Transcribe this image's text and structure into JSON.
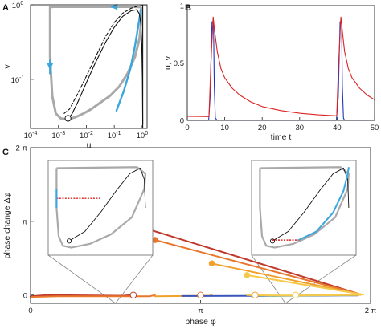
{
  "chart_data": [
    {
      "panel": "A",
      "type": "line",
      "xlabel": "u",
      "ylabel": "v",
      "xscale": "log",
      "yscale": "log",
      "xlim": [
        0.0001,
        1.5
      ],
      "ylim": [
        0.022,
        1.0
      ],
      "xticks": [
        {
          "v": 0.0001,
          "base": "10",
          "exp": "-4"
        },
        {
          "v": 0.001,
          "base": "10",
          "exp": "-3"
        },
        {
          "v": 0.01,
          "base": "10",
          "exp": "-2"
        },
        {
          "v": 0.1,
          "base": "10",
          "exp": "-1"
        },
        {
          "v": 1,
          "base": "10",
          "exp": "0"
        }
      ],
      "yticks": [
        {
          "v": 0.1,
          "base": "10",
          "exp": "-1"
        },
        {
          "v": 1,
          "base": "10",
          "exp": "0"
        }
      ],
      "series": [
        {
          "style": "limit-cycle-gray",
          "color": "#a9a9a9",
          "points": [
            [
              0.0005,
              0.93
            ],
            [
              0.0007,
              0.94
            ],
            [
              0.003,
              0.94
            ],
            [
              0.02,
              0.94
            ],
            [
              0.1,
              0.94
            ],
            [
              0.5,
              0.94
            ],
            [
              0.85,
              0.93
            ],
            [
              0.95,
              0.9
            ],
            [
              0.98,
              0.8
            ],
            [
              0.95,
              0.65
            ],
            [
              0.8,
              0.35
            ],
            [
              0.55,
              0.2
            ],
            [
              0.3,
              0.12
            ],
            [
              0.15,
              0.08
            ],
            [
              0.07,
              0.06
            ],
            [
              0.03,
              0.048
            ],
            [
              0.015,
              0.04
            ],
            [
              0.008,
              0.035
            ],
            [
              0.004,
              0.031
            ],
            [
              0.002,
              0.029
            ],
            [
              0.0012,
              0.03
            ],
            [
              0.0008,
              0.035
            ],
            [
              0.0006,
              0.06
            ],
            [
              0.0005,
              0.2
            ],
            [
              0.0005,
              0.6
            ],
            [
              0.0005,
              0.93
            ]
          ]
        },
        {
          "style": "limit-cycle-blue",
          "color": "#3aa6dd",
          "points": [
            [
              0.12,
              0.038
            ],
            [
              0.22,
              0.07
            ],
            [
              0.38,
              0.14
            ],
            [
              0.55,
              0.28
            ],
            [
              0.7,
              0.48
            ],
            [
              0.8,
              0.65
            ],
            [
              0.86,
              0.78
            ],
            [
              0.88,
              0.86
            ]
          ]
        },
        {
          "style": "limit-cycle-blue",
          "color": "#3aa6dd",
          "points": [
            [
              0.0005,
              0.18
            ],
            [
              0.0005,
              0.12
            ]
          ]
        },
        {
          "style": "nullcline-solid",
          "color": "#111111",
          "points": [
            [
              0.0022,
              0.03
            ],
            [
              0.003,
              0.034
            ],
            [
              0.005,
              0.05
            ],
            [
              0.01,
              0.09
            ],
            [
              0.02,
              0.16
            ],
            [
              0.05,
              0.32
            ],
            [
              0.1,
              0.5
            ],
            [
              0.2,
              0.7
            ],
            [
              0.4,
              0.83
            ],
            [
              0.65,
              0.86
            ],
            [
              0.8,
              0.75
            ],
            [
              0.9,
              0.55
            ],
            [
              0.97,
              0.3
            ],
            [
              1.02,
              0.1
            ],
            [
              1.05,
              0.025
            ]
          ]
        },
        {
          "style": "nullcline-dashed",
          "color": "#111111",
          "points": [
            [
              0.0016,
              0.035
            ],
            [
              0.0025,
              0.04
            ],
            [
              0.005,
              0.065
            ],
            [
              0.01,
              0.11
            ],
            [
              0.02,
              0.19
            ],
            [
              0.05,
              0.38
            ],
            [
              0.1,
              0.58
            ],
            [
              0.2,
              0.77
            ],
            [
              0.4,
              0.9
            ],
            [
              0.7,
              0.96
            ],
            [
              1.3,
              0.98
            ]
          ]
        },
        {
          "style": "vertical-line",
          "color": "#111111",
          "points": [
            [
              1.05,
              0.022
            ],
            [
              1.05,
              1.0
            ]
          ]
        }
      ],
      "markers": [
        {
          "x": 0.0022,
          "y": 0.03,
          "shape": "open-circle"
        }
      ],
      "arrows": [
        {
          "x": 0.1,
          "y": 0.94,
          "dir": "left",
          "color": "#3aa6dd"
        },
        {
          "x": 0.0005,
          "y": 0.15,
          "dir": "down",
          "color": "#3aa6dd"
        }
      ]
    },
    {
      "panel": "B",
      "type": "line",
      "xlabel": "time t",
      "ylabel": "u, v",
      "xlim": [
        0,
        50
      ],
      "ylim": [
        0,
        1.0
      ],
      "xticks": [
        0,
        10,
        20,
        30,
        40,
        50
      ],
      "yticks": [
        0,
        0.5,
        1
      ],
      "ytick_labels": [
        "0",
        "0.5",
        "1"
      ],
      "series": [
        {
          "name": "",
          "color": "#2233bb",
          "points": [
            [
              0,
              0.0
            ],
            [
              5.7,
              0.0
            ],
            [
              6.1,
              0.2
            ],
            [
              6.4,
              0.6
            ],
            [
              6.6,
              0.86
            ],
            [
              7.0,
              0.86
            ],
            [
              7.2,
              0.3
            ],
            [
              7.5,
              0.02
            ],
            [
              8,
              0.0
            ],
            [
              39.8,
              0.0
            ],
            [
              40.3,
              0.2
            ],
            [
              40.6,
              0.6
            ],
            [
              40.8,
              0.86
            ],
            [
              41.2,
              0.86
            ],
            [
              41.4,
              0.3
            ],
            [
              41.7,
              0.02
            ],
            [
              42,
              0.0
            ],
            [
              50,
              0.0
            ]
          ]
        },
        {
          "name": "",
          "color": "#dd2222",
          "points": [
            [
              0,
              0.035
            ],
            [
              5.8,
              0.033
            ],
            [
              6.3,
              0.5
            ],
            [
              6.9,
              0.9
            ],
            [
              7.3,
              0.78
            ],
            [
              8,
              0.6
            ],
            [
              9,
              0.45
            ],
            [
              10,
              0.37
            ],
            [
              12,
              0.28
            ],
            [
              14,
              0.22
            ],
            [
              17,
              0.16
            ],
            [
              20,
              0.12
            ],
            [
              25,
              0.085
            ],
            [
              30,
              0.062
            ],
            [
              35,
              0.048
            ],
            [
              39.9,
              0.04
            ],
            [
              40.4,
              0.5
            ],
            [
              41,
              0.9
            ],
            [
              41.4,
              0.78
            ],
            [
              42,
              0.6
            ],
            [
              43,
              0.45
            ],
            [
              44,
              0.37
            ],
            [
              46,
              0.28
            ],
            [
              48,
              0.22
            ],
            [
              50,
              0.18
            ]
          ]
        }
      ]
    },
    {
      "panel": "C",
      "type": "line",
      "xlabel": "phase φ",
      "ylabel": "phase change Δφ",
      "xlim": [
        0,
        6.2832
      ],
      "ylim": [
        -0.35,
        6.2832
      ],
      "xticks": [
        {
          "v": 0,
          "label": "0"
        },
        {
          "v": 3.1416,
          "label": "π"
        },
        {
          "v": 6.2832,
          "label": "2 π"
        }
      ],
      "yticks": [
        {
          "v": 0,
          "label": "0"
        },
        {
          "v": 3.1416,
          "label": "π"
        },
        {
          "v": 6.2832,
          "label": "2 π"
        }
      ],
      "series": [
        {
          "name": "",
          "color": "#c0392b",
          "points": [
            [
              1.9,
              3.0
            ],
            [
              6.1,
              0.03
            ]
          ]
        },
        {
          "name": "",
          "color": "#e8762b",
          "points": [
            [
              2.3,
              2.35
            ],
            [
              6.1,
              0.03
            ]
          ]
        },
        {
          "name": "",
          "color": "#f0a02c",
          "points": [
            [
              3.35,
              1.35
            ],
            [
              6.1,
              0.03
            ]
          ]
        },
        {
          "name": "",
          "color": "#f6c94a",
          "points": [
            [
              4.0,
              0.85
            ],
            [
              6.15,
              0.02
            ]
          ]
        },
        {
          "name": "",
          "color": "#c0392b",
          "points": [
            [
              0,
              -0.05
            ],
            [
              0.3,
              0.0
            ],
            [
              1.7,
              -0.03
            ],
            [
              1.85,
              0.0
            ]
          ]
        },
        {
          "name": "",
          "color": "#e8762b",
          "points": [
            [
              0,
              -0.08
            ],
            [
              0.5,
              -0.05
            ],
            [
              2.2,
              -0.05
            ],
            [
              2.3,
              0.0
            ]
          ]
        },
        {
          "name": "",
          "color": "#f0a02c",
          "points": [
            [
              2.3,
              -0.05
            ],
            [
              3.3,
              -0.03
            ],
            [
              3.35,
              0.0
            ]
          ]
        },
        {
          "name": "",
          "color": "#3a55bb",
          "points": [
            [
              2.8,
              -0.04
            ],
            [
              5.8,
              -0.02
            ],
            [
              6.05,
              -0.02
            ]
          ]
        },
        {
          "name": "",
          "color": "#35a06a",
          "points": [
            [
              4.05,
              0.0
            ],
            [
              4.5,
              -0.03
            ],
            [
              6.0,
              0.0
            ]
          ]
        },
        {
          "name": "",
          "color": "#f6c94a",
          "points": [
            [
              4.0,
              0.0
            ],
            [
              4.6,
              -0.02
            ],
            [
              6.1,
              0.0
            ]
          ]
        }
      ],
      "markers": [
        {
          "x": 1.9,
          "y": 3.0,
          "shape": "filled-circle",
          "color": "#c0392b"
        },
        {
          "x": 2.3,
          "y": 2.35,
          "shape": "filled-circle",
          "color": "#e8762b"
        },
        {
          "x": 3.35,
          "y": 1.35,
          "shape": "filled-circle",
          "color": "#f0a02c"
        },
        {
          "x": 4.0,
          "y": 0.85,
          "shape": "filled-circle",
          "color": "#f6c94a"
        },
        {
          "x": 1.9,
          "y": 0.0,
          "shape": "open-circle",
          "color": "#c0392b"
        },
        {
          "x": 3.1416,
          "y": 0.0,
          "shape": "open-circle",
          "color": "#e8762b"
        },
        {
          "x": 4.15,
          "y": 0.0,
          "shape": "open-circle",
          "color": "#f0a02c"
        },
        {
          "x": 4.9,
          "y": 0.0,
          "shape": "open-circle",
          "color": "#f6c94a"
        }
      ],
      "insets": [
        {
          "anchor_phase": 1.57,
          "position": "left",
          "perturbation_color": "#dd2222",
          "jump_marker_color": "#3aa6dd"
        },
        {
          "anchor_phase": 4.71,
          "position": "right",
          "perturbation_color": "#dd2222",
          "jump_marker_color": "#3aa6dd"
        }
      ]
    }
  ],
  "panel_labels": [
    "A",
    "B",
    "C"
  ]
}
